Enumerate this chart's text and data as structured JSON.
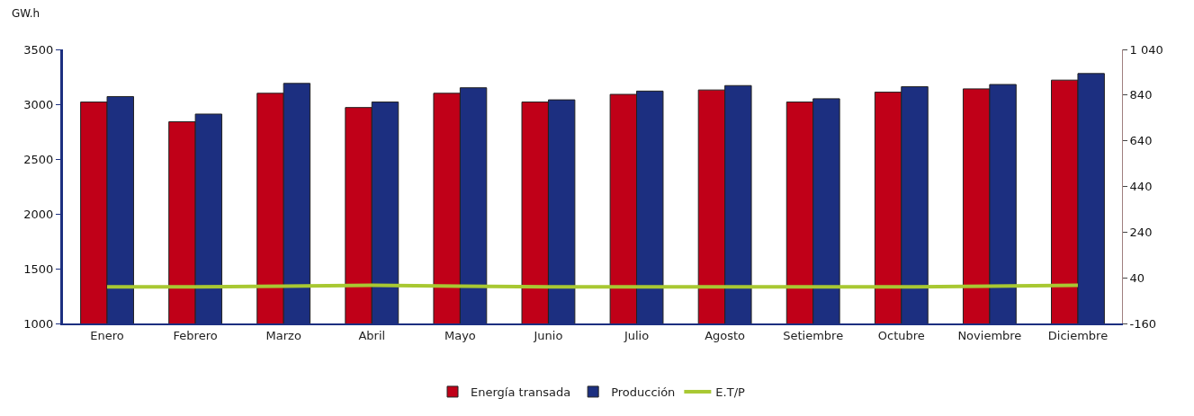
{
  "chart_data": {
    "type": "bar",
    "ylabel": "GW.h",
    "categories": [
      "Enero",
      "Febrero",
      "Marzo",
      "Abril",
      "Mayo",
      "Junio",
      "Julio",
      "Agosto",
      "Setiembre",
      "Octubre",
      "Noviembre",
      "Diciembre"
    ],
    "series": [
      {
        "name": "Energía transada",
        "color": "#c00018",
        "values": [
          3020,
          2840,
          3100,
          2970,
          3100,
          3020,
          3090,
          3130,
          3020,
          3110,
          3140,
          3220
        ]
      },
      {
        "name": "Producción",
        "color": "#1c2f80",
        "values": [
          3070,
          2910,
          3190,
          3020,
          3150,
          3040,
          3120,
          3170,
          3050,
          3160,
          3180,
          3280
        ]
      },
      {
        "name": "E.T/P",
        "type": "line",
        "axis": "y2",
        "color": "#a8c832",
        "values": [
          0,
          0,
          3,
          7,
          3,
          0,
          0,
          0,
          0,
          0,
          3,
          7
        ]
      }
    ],
    "ylim": [
      1000,
      3500
    ],
    "yticks": [
      1000,
      1500,
      2000,
      2500,
      3000,
      3500
    ],
    "y2lim": [
      -160,
      1040
    ],
    "y2ticks": [
      -160,
      40,
      240,
      440,
      640,
      840,
      {
        "value": 1040,
        "label": "1 040"
      }
    ],
    "legend": "bottom",
    "marker": "none",
    "line_style": "solid"
  }
}
